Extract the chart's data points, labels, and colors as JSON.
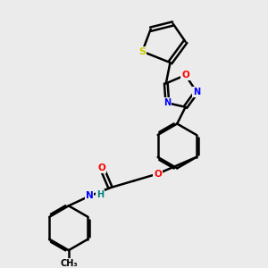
{
  "bg_color": "#ebebeb",
  "bond_color": "#000000",
  "bond_width": 1.8,
  "figsize": [
    3.0,
    3.0
  ],
  "dpi": 100,
  "atoms": {
    "S": {
      "color": "#cccc00"
    },
    "O": {
      "color": "#ff0000"
    },
    "N": {
      "color": "#0000ff"
    },
    "H": {
      "color": "#008080"
    }
  }
}
